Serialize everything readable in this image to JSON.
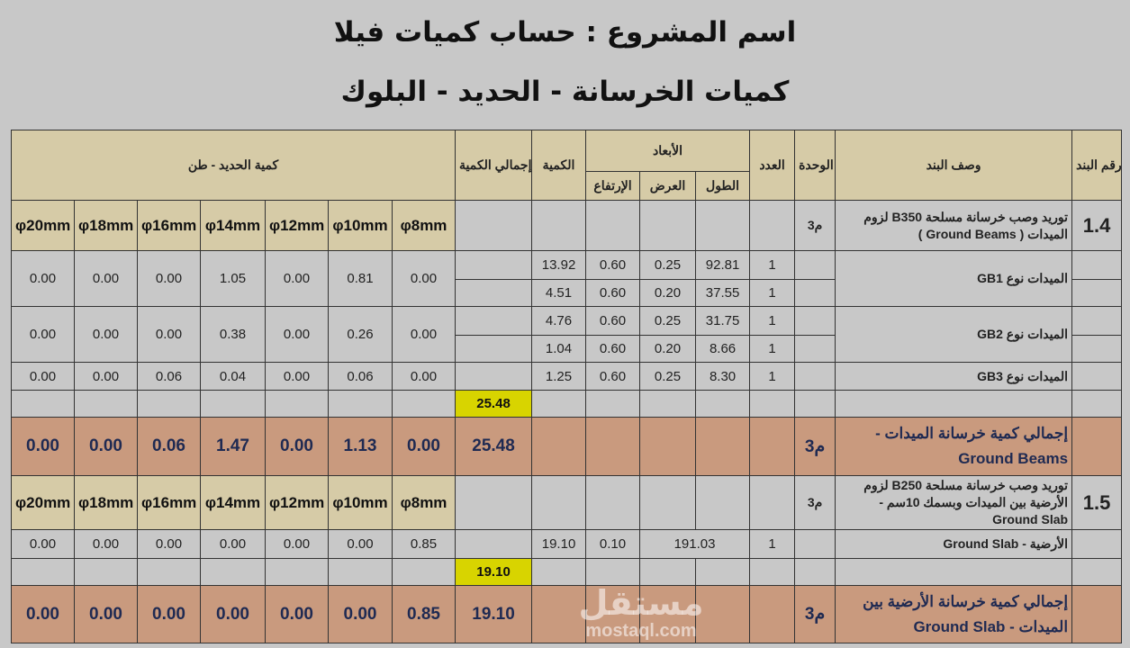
{
  "title": {
    "line1": "اسم المشروع : حساب كميات فيلا",
    "line2": "كميات الخرسانة - الحديد - البلوك"
  },
  "header": {
    "steel_qty": "كمية الحديد - طن",
    "total_qty": "إجمالي الكمية",
    "qty": "الكمية",
    "dimensions": "الأبعاد",
    "height": "الإرتفاع",
    "width": "العرض",
    "length": "الطول",
    "count": "العدد",
    "unit": "الوحدة",
    "description": "وصف البند",
    "item_no": "رقم البند"
  },
  "steel_sizes": [
    "φ20mm",
    "φ18mm",
    "φ16mm",
    "φ14mm",
    "φ12mm",
    "φ10mm",
    "φ8mm"
  ],
  "sections": [
    {
      "item": "1.4",
      "description": "توريد وصب خرسانة مسلحة B350 لزوم الميدات ( Ground Beams )",
      "unit": "م3",
      "groups": [
        {
          "name": "الميدات نوع GB1",
          "steel": [
            "0.00",
            "0.00",
            "0.00",
            "1.05",
            "0.00",
            "0.81",
            "0.00"
          ],
          "lines": [
            {
              "count": "1",
              "length": "92.81",
              "width": "0.25",
              "height": "0.60",
              "qty": "13.92"
            },
            {
              "count": "1",
              "length": "37.55",
              "width": "0.20",
              "height": "0.60",
              "qty": "4.51"
            }
          ]
        },
        {
          "name": "الميدات نوع GB2",
          "steel": [
            "0.00",
            "0.00",
            "0.00",
            "0.38",
            "0.00",
            "0.26",
            "0.00"
          ],
          "lines": [
            {
              "count": "1",
              "length": "31.75",
              "width": "0.25",
              "height": "0.60",
              "qty": "4.76"
            },
            {
              "count": "1",
              "length": "8.66",
              "width": "0.20",
              "height": "0.60",
              "qty": "1.04"
            }
          ]
        },
        {
          "name": "الميدات نوع GB3",
          "steel": [
            "0.00",
            "0.00",
            "0.06",
            "0.04",
            "0.00",
            "0.06",
            "0.00"
          ],
          "lines": [
            {
              "count": "1",
              "length": "8.30",
              "width": "0.25",
              "height": "0.60",
              "qty": "1.25"
            }
          ]
        }
      ],
      "subtotal": "25.48",
      "total": {
        "label": "إجمالي كمية خرسانة الميدات - Ground Beams",
        "unit": "م3",
        "qty": "25.48",
        "steel": [
          "0.00",
          "0.00",
          "0.06",
          "1.47",
          "0.00",
          "1.13",
          "0.00"
        ]
      }
    },
    {
      "item": "1.5",
      "description": "توريد وصب خرسانة مسلحة B250 لزوم الأرضية بين الميدات وبسمك 10سم - Ground Slab",
      "unit": "م3",
      "groups": [
        {
          "name": "الأرضية - Ground Slab",
          "steel": [
            "0.00",
            "0.00",
            "0.00",
            "0.00",
            "0.00",
            "0.00",
            "0.85"
          ],
          "lines": [
            {
              "count": "1",
              "length": "191.03",
              "height": "0.10",
              "qty": "19.10",
              "merged": true
            }
          ]
        }
      ],
      "subtotal": "19.10",
      "total": {
        "label": "إجمالي كمية خرسانة الأرضية بين الميدات - Ground Slab",
        "unit": "م3",
        "qty": "19.10",
        "steel": [
          "0.00",
          "0.00",
          "0.00",
          "0.00",
          "0.00",
          "0.00",
          "0.85"
        ]
      }
    }
  ],
  "watermark": {
    "arabic": "مستقل",
    "latin": "mostaql.com"
  },
  "colors": {
    "background": "#c8c8c8",
    "header": "#d6cba7",
    "total_row": "#c99a7e",
    "subtotal_highlight": "#d8d400",
    "total_text": "#1f2a52"
  }
}
